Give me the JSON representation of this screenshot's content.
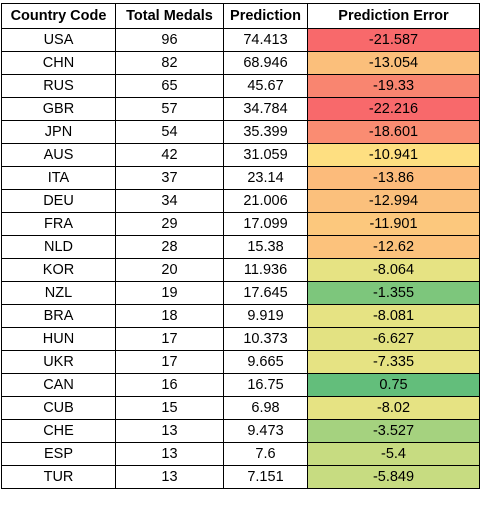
{
  "table": {
    "headers": {
      "country": "Country Code",
      "medals": "Total Medals",
      "prediction": "Prediction",
      "error": "Prediction Error"
    },
    "rows": [
      {
        "country": "USA",
        "medals": "96",
        "prediction": "74.413",
        "error": "-21.587",
        "error_color": "#f8696b"
      },
      {
        "country": "CHN",
        "medals": "82",
        "prediction": "68.946",
        "error": "-13.054",
        "error_color": "#fbbf7b"
      },
      {
        "country": "RUS",
        "medals": "65",
        "prediction": "45.67",
        "error": "-19.33",
        "error_color": "#f98570"
      },
      {
        "country": "GBR",
        "medals": "57",
        "prediction": "34.784",
        "error": "-22.216",
        "error_color": "#f8696b"
      },
      {
        "country": "JPN",
        "medals": "54",
        "prediction": "35.399",
        "error": "-18.601",
        "error_color": "#fa8c72"
      },
      {
        "country": "AUS",
        "medals": "42",
        "prediction": "31.059",
        "error": "-10.941",
        "error_color": "#fedf81"
      },
      {
        "country": "ITA",
        "medals": "37",
        "prediction": "23.14",
        "error": "-13.86",
        "error_color": "#fcbb7b"
      },
      {
        "country": "DEU",
        "medals": "34",
        "prediction": "21.006",
        "error": "-12.994",
        "error_color": "#fbc07c"
      },
      {
        "country": "FRA",
        "medals": "29",
        "prediction": "17.099",
        "error": "-11.901",
        "error_color": "#fcc87d"
      },
      {
        "country": "NLD",
        "medals": "28",
        "prediction": "15.38",
        "error": "-12.62",
        "error_color": "#fcc27c"
      },
      {
        "country": "KOR",
        "medals": "20",
        "prediction": "11.936",
        "error": "-8.064",
        "error_color": "#e6e383"
      },
      {
        "country": "NZL",
        "medals": "19",
        "prediction": "17.645",
        "error": "-1.355",
        "error_color": "#7dc67c"
      },
      {
        "country": "BRA",
        "medals": "18",
        "prediction": "9.919",
        "error": "-8.081",
        "error_color": "#e6e383"
      },
      {
        "country": "HUN",
        "medals": "17",
        "prediction": "10.373",
        "error": "-6.627",
        "error_color": "#e3e282"
      },
      {
        "country": "UKR",
        "medals": "17",
        "prediction": "9.665",
        "error": "-7.335",
        "error_color": "#e6e383"
      },
      {
        "country": "CAN",
        "medals": "16",
        "prediction": "16.75",
        "error": "0.75",
        "error_color": "#63be7b"
      },
      {
        "country": "CUB",
        "medals": "15",
        "prediction": "6.98",
        "error": "-8.02",
        "error_color": "#e6e383"
      },
      {
        "country": "CHE",
        "medals": "13",
        "prediction": "9.473",
        "error": "-3.527",
        "error_color": "#a5d27f"
      },
      {
        "country": "ESP",
        "medals": "13",
        "prediction": "7.6",
        "error": "-5.4",
        "error_color": "#c7dc81"
      },
      {
        "country": "TUR",
        "medals": "13",
        "prediction": "7.151",
        "error": "-5.849",
        "error_color": "#c7dc81"
      }
    ]
  }
}
